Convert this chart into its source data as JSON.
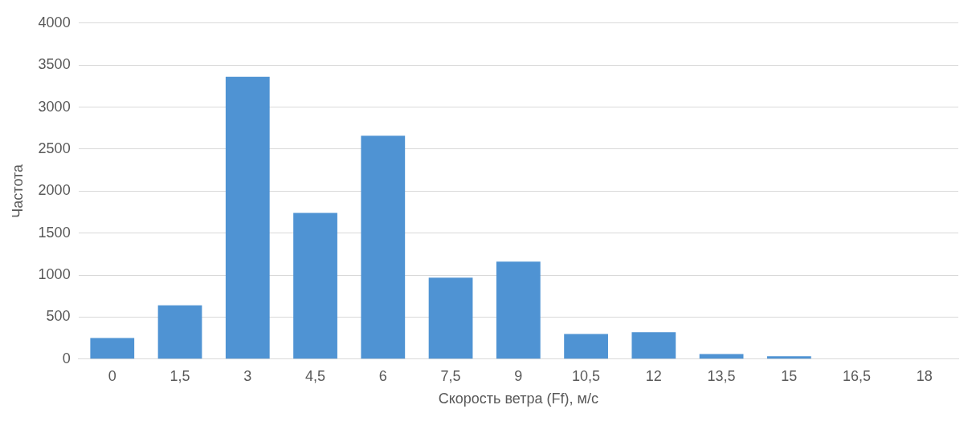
{
  "chart_data": {
    "type": "bar",
    "xlabel": "Скорость ветра (Ff), м/с",
    "ylabel": "Частота",
    "categories": [
      "0",
      "1,5",
      "3",
      "4,5",
      "6",
      "7,5",
      "9",
      "10,5",
      "12",
      "13,5",
      "15",
      "16,5",
      "18"
    ],
    "values": [
      250,
      640,
      3360,
      1740,
      2660,
      970,
      1160,
      300,
      320,
      60,
      35,
      0,
      0
    ],
    "color": "#4f93d3",
    "ylim": [
      0,
      4000
    ],
    "yticks": [
      0,
      500,
      1000,
      1500,
      2000,
      2500,
      3000,
      3500,
      4000
    ],
    "grid": "y",
    "legend": false
  }
}
